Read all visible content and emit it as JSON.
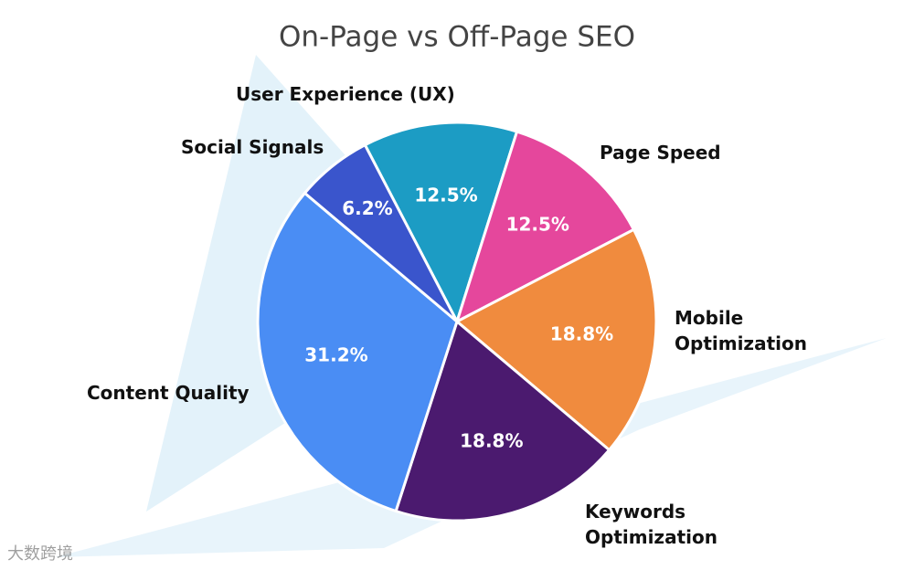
{
  "chart_data": {
    "type": "pie",
    "title": "On-Page vs Off-Page SEO",
    "categories": [
      "User Experience (UX)",
      "Page Speed",
      "Mobile Optimization",
      "Keywords Optimization",
      "Content Quality",
      "Social Signals"
    ],
    "values": [
      12.5,
      12.5,
      18.8,
      18.8,
      31.2,
      6.2
    ],
    "value_labels": [
      "12.5%",
      "12.5%",
      "18.8%",
      "18.8%",
      "31.2%",
      "6.2%"
    ],
    "colors": [
      "#1c9cc4",
      "#e5479c",
      "#f08b3e",
      "#4b1a6f",
      "#4a8df4",
      "#3a55cc"
    ],
    "watermark": "大数跨境"
  }
}
